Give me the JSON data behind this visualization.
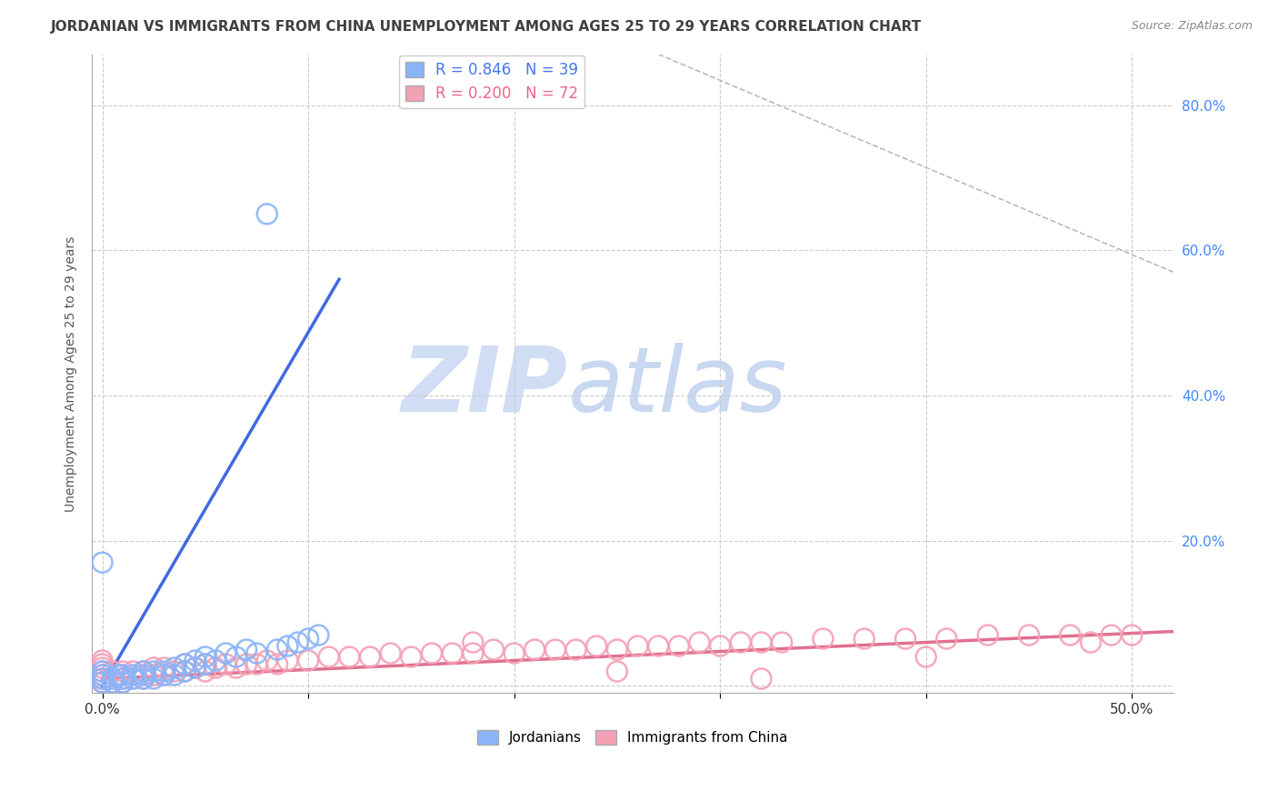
{
  "title": "JORDANIAN VS IMMIGRANTS FROM CHINA UNEMPLOYMENT AMONG AGES 25 TO 29 YEARS CORRELATION CHART",
  "source": "Source: ZipAtlas.com",
  "ylabel": "Unemployment Among Ages 25 to 29 years",
  "x_ticks": [
    0.0,
    0.1,
    0.2,
    0.3,
    0.4,
    0.5
  ],
  "x_tick_labels": [
    "0.0%",
    "",
    "",
    "",
    "",
    "50.0%"
  ],
  "y_ticks": [
    0.0,
    0.2,
    0.4,
    0.6,
    0.8
  ],
  "y_tick_labels_right": [
    "",
    "20.0%",
    "40.0%",
    "60.0%",
    "80.0%"
  ],
  "xlim": [
    -0.005,
    0.52
  ],
  "ylim": [
    -0.01,
    0.87
  ],
  "watermark_zip": "ZIP",
  "watermark_atlas": "atlas",
  "legend_r1": "R = 0.846",
  "legend_n1": "N = 39",
  "legend_r2": "R = 0.200",
  "legend_n2": "N = 72",
  "legend_label1": "Jordanians",
  "legend_label2": "Immigrants from China",
  "blue_color": "#8ab4f8",
  "blue_line_color": "#4169e1",
  "pink_color": "#f4a0b5",
  "pink_line_color": "#e07090",
  "blue_scatter_x": [
    0.0,
    0.0,
    0.0,
    0.0,
    0.0,
    0.005,
    0.005,
    0.008,
    0.01,
    0.01,
    0.01,
    0.015,
    0.015,
    0.02,
    0.02,
    0.02,
    0.025,
    0.025,
    0.03,
    0.03,
    0.035,
    0.035,
    0.04,
    0.04,
    0.045,
    0.045,
    0.05,
    0.05,
    0.055,
    0.06,
    0.065,
    0.07,
    0.075,
    0.08,
    0.085,
    0.09,
    0.095,
    0.1,
    0.105
  ],
  "blue_scatter_y": [
    0.005,
    0.01,
    0.015,
    0.02,
    0.17,
    0.005,
    0.01,
    0.015,
    0.005,
    0.01,
    0.015,
    0.01,
    0.015,
    0.01,
    0.015,
    0.02,
    0.01,
    0.02,
    0.015,
    0.02,
    0.015,
    0.025,
    0.02,
    0.03,
    0.025,
    0.035,
    0.03,
    0.04,
    0.035,
    0.045,
    0.04,
    0.05,
    0.045,
    0.65,
    0.05,
    0.055,
    0.06,
    0.065,
    0.07
  ],
  "pink_scatter_x": [
    0.0,
    0.0,
    0.0,
    0.0,
    0.0,
    0.0,
    0.0,
    0.005,
    0.005,
    0.01,
    0.01,
    0.01,
    0.015,
    0.015,
    0.02,
    0.02,
    0.025,
    0.025,
    0.03,
    0.03,
    0.035,
    0.04,
    0.04,
    0.045,
    0.05,
    0.05,
    0.055,
    0.06,
    0.065,
    0.07,
    0.075,
    0.08,
    0.085,
    0.09,
    0.1,
    0.11,
    0.12,
    0.13,
    0.14,
    0.15,
    0.16,
    0.17,
    0.18,
    0.19,
    0.2,
    0.21,
    0.22,
    0.23,
    0.24,
    0.25,
    0.26,
    0.27,
    0.28,
    0.29,
    0.3,
    0.31,
    0.32,
    0.33,
    0.35,
    0.37,
    0.39,
    0.41,
    0.43,
    0.45,
    0.47,
    0.49,
    0.5,
    0.18,
    0.25,
    0.32,
    0.4,
    0.48
  ],
  "pink_scatter_y": [
    0.005,
    0.01,
    0.015,
    0.02,
    0.025,
    0.03,
    0.035,
    0.005,
    0.02,
    0.005,
    0.01,
    0.02,
    0.01,
    0.02,
    0.01,
    0.02,
    0.015,
    0.025,
    0.015,
    0.025,
    0.02,
    0.02,
    0.03,
    0.025,
    0.02,
    0.03,
    0.025,
    0.03,
    0.025,
    0.03,
    0.03,
    0.035,
    0.03,
    0.035,
    0.035,
    0.04,
    0.04,
    0.04,
    0.045,
    0.04,
    0.045,
    0.045,
    0.045,
    0.05,
    0.045,
    0.05,
    0.05,
    0.05,
    0.055,
    0.05,
    0.055,
    0.055,
    0.055,
    0.06,
    0.055,
    0.06,
    0.06,
    0.06,
    0.065,
    0.065,
    0.065,
    0.065,
    0.07,
    0.07,
    0.07,
    0.07,
    0.07,
    0.06,
    0.02,
    0.01,
    0.04,
    0.06
  ],
  "blue_line_x": [
    0.0,
    0.115
  ],
  "blue_line_y": [
    0.0,
    0.56
  ],
  "pink_line_x": [
    0.0,
    0.52
  ],
  "pink_line_y": [
    0.01,
    0.075
  ],
  "dashed_line_x": [
    0.27,
    0.52
  ],
  "dashed_line_y": [
    0.87,
    0.57
  ],
  "background_color": "#FFFFFF",
  "grid_color": "#CCCCCC",
  "title_color": "#404040",
  "title_fontsize": 11,
  "axis_label_color": "#555555",
  "watermark_color_zip": "#d0ddf5",
  "watermark_color_atlas": "#d0ddf5",
  "watermark_fontsize": 72
}
